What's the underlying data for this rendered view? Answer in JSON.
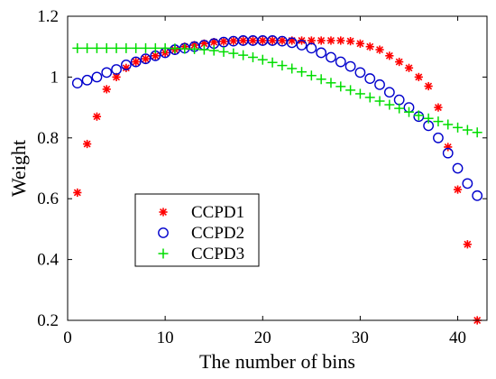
{
  "chart_data": {
    "type": "scatter",
    "title": "",
    "xlabel": "The number of bins",
    "ylabel": "Weight",
    "xlim": [
      0,
      43
    ],
    "ylim": [
      0.2,
      1.2
    ],
    "grid": false,
    "legend_position": "middle-left",
    "x_ticks": [
      0,
      10,
      20,
      30,
      40
    ],
    "y_ticks": [
      0.2,
      0.4,
      0.6,
      0.8,
      1,
      1.2
    ],
    "x": [
      1,
      2,
      3,
      4,
      5,
      6,
      7,
      8,
      9,
      10,
      11,
      12,
      13,
      14,
      15,
      16,
      17,
      18,
      19,
      20,
      21,
      22,
      23,
      24,
      25,
      26,
      27,
      28,
      29,
      30,
      31,
      32,
      33,
      34,
      35,
      36,
      37,
      38,
      39,
      40,
      41,
      42
    ],
    "series": [
      {
        "name": "CCPD1",
        "marker": "asterisk",
        "color": "#ff0000",
        "values": [
          0.62,
          0.78,
          0.87,
          0.96,
          1.0,
          1.03,
          1.05,
          1.06,
          1.07,
          1.08,
          1.09,
          1.1,
          1.105,
          1.11,
          1.115,
          1.117,
          1.119,
          1.12,
          1.12,
          1.12,
          1.12,
          1.12,
          1.12,
          1.12,
          1.12,
          1.12,
          1.12,
          1.12,
          1.118,
          1.11,
          1.1,
          1.09,
          1.07,
          1.05,
          1.03,
          1.0,
          0.97,
          0.9,
          0.77,
          0.63,
          0.45,
          0.2
        ]
      },
      {
        "name": "CCPD2",
        "marker": "circle",
        "color": "#0000cc",
        "values": [
          0.98,
          0.99,
          1.0,
          1.015,
          1.025,
          1.04,
          1.05,
          1.06,
          1.07,
          1.08,
          1.09,
          1.095,
          1.1,
          1.105,
          1.11,
          1.115,
          1.118,
          1.12,
          1.12,
          1.12,
          1.12,
          1.118,
          1.113,
          1.105,
          1.095,
          1.08,
          1.065,
          1.05,
          1.035,
          1.015,
          0.995,
          0.975,
          0.95,
          0.925,
          0.9,
          0.87,
          0.84,
          0.8,
          0.75,
          0.7,
          0.65,
          0.61
        ]
      },
      {
        "name": "CCPD3",
        "marker": "plus",
        "color": "#00dd00",
        "values": [
          1.095,
          1.095,
          1.095,
          1.095,
          1.095,
          1.095,
          1.095,
          1.095,
          1.095,
          1.095,
          1.094,
          1.093,
          1.092,
          1.09,
          1.087,
          1.083,
          1.078,
          1.072,
          1.065,
          1.057,
          1.048,
          1.038,
          1.028,
          1.017,
          1.005,
          0.993,
          0.981,
          0.969,
          0.957,
          0.945,
          0.933,
          0.921,
          0.909,
          0.897,
          0.885,
          0.874,
          0.864,
          0.854,
          0.844,
          0.834,
          0.826,
          0.818
        ]
      }
    ]
  }
}
